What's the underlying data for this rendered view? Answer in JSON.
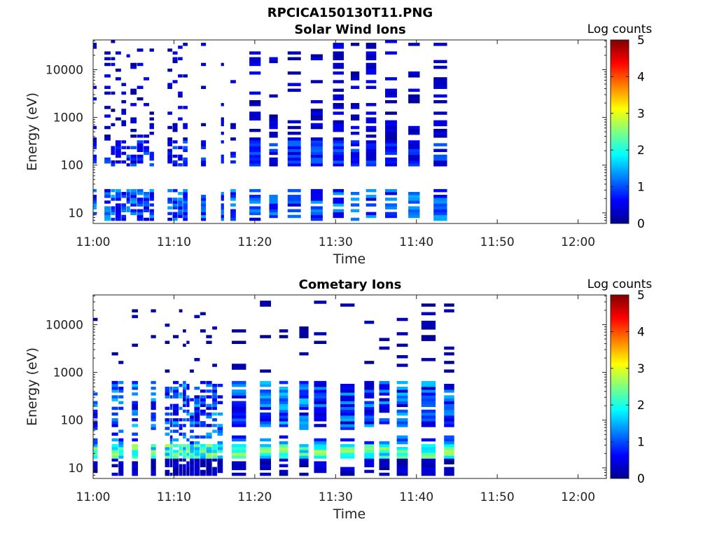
{
  "figure_title": "RPCICA150130T11.PNG",
  "chart_data": [
    {
      "type": "heatmap",
      "title": "Solar Wind Ions",
      "xlabel": "Time",
      "ylabel": "Energy (eV)",
      "x_ticks": [
        "11:00",
        "11:10",
        "11:20",
        "11:30",
        "11:40",
        "11:50",
        "12:00"
      ],
      "y_ticks": [
        "10",
        "100",
        "1000",
        "10000"
      ],
      "y_scale": "log",
      "xlim_minutes": [
        0,
        63.5
      ],
      "ylim_eV": [
        6,
        42000
      ],
      "data_extent_minutes": [
        0,
        44.3
      ],
      "colorbar": {
        "label": "Log counts",
        "ticks": [
          "0",
          "1",
          "2",
          "3",
          "4",
          "5"
        ],
        "range": [
          0,
          5
        ],
        "colormap": "jet"
      },
      "features": {
        "dominant_band_eV": [
          90,
          350
        ],
        "low_energy_band_eV": [
          7,
          30
        ],
        "sparse_high_energy_eV": [
          1000,
          40000
        ]
      }
    },
    {
      "type": "heatmap",
      "title": "Cometary Ions",
      "xlabel": "Time",
      "ylabel": "Energy (eV)",
      "x_ticks": [
        "11:00",
        "11:10",
        "11:20",
        "11:30",
        "11:40",
        "11:50",
        "12:00"
      ],
      "y_ticks": [
        "10",
        "100",
        "1000",
        "10000"
      ],
      "y_scale": "log",
      "xlim_minutes": [
        0,
        63.5
      ],
      "ylim_eV": [
        6,
        42000
      ],
      "data_extent_minutes": [
        0,
        44.3
      ],
      "colorbar": {
        "label": "Log counts",
        "ticks": [
          "0",
          "1",
          "2",
          "3",
          "4",
          "5"
        ],
        "range": [
          0,
          5
        ],
        "colormap": "jet"
      },
      "features": {
        "dominant_band_eV": [
          15,
          30
        ],
        "mid_energy_band_eV": [
          70,
          700
        ],
        "sparse_high_energy_eV": [
          1000,
          30000
        ]
      }
    }
  ]
}
